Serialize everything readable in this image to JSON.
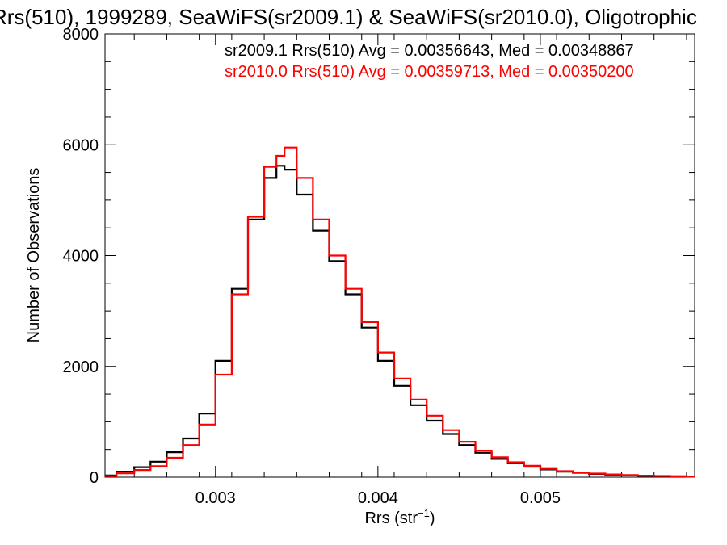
{
  "chart_data": {
    "type": "line",
    "title": "Rrs(510), 1999289, SeaWiFS(sr2009.1) & SeaWiFS(sr2010.0), Oligotrophic",
    "xlabel": "Rrs (str",
    "xlabel_superscript": "−1",
    "xlabel_suffix": ")",
    "ylabel": "Number of Observations",
    "xlim": [
      0.00232,
      0.00595
    ],
    "ylim": [
      0,
      8000
    ],
    "x_ticks": [
      {
        "value": 0.003,
        "label": "0.003"
      },
      {
        "value": 0.004,
        "label": "0.004"
      },
      {
        "value": 0.005,
        "label": "0.005"
      }
    ],
    "y_ticks": [
      {
        "value": 0,
        "label": "0"
      },
      {
        "value": 2000,
        "label": "2000"
      },
      {
        "value": 4000,
        "label": "4000"
      },
      {
        "value": 6000,
        "label": "6000"
      },
      {
        "value": 8000,
        "label": "8000"
      }
    ],
    "grid": false,
    "legend_position": "top-right",
    "series": [
      {
        "name": "sr2009.1",
        "color": "#000000",
        "label": "sr2009.1 Rrs(510) Avg = 0.00356643, Med = 0.00348867",
        "x": [
          0.00233,
          0.00245,
          0.00255,
          0.00265,
          0.00275,
          0.00285,
          0.00295,
          0.00305,
          0.00315,
          0.00325,
          0.00335,
          0.0034,
          0.00345,
          0.00355,
          0.00365,
          0.00375,
          0.00385,
          0.00395,
          0.00405,
          0.00415,
          0.00425,
          0.00435,
          0.00445,
          0.00455,
          0.00465,
          0.00475,
          0.00485,
          0.00495,
          0.00505,
          0.00515,
          0.00525,
          0.00535,
          0.00545,
          0.00555,
          0.00565,
          0.00575,
          0.00585,
          0.00594
        ],
        "y": [
          30,
          100,
          180,
          280,
          450,
          700,
          1150,
          2100,
          3400,
          4650,
          5400,
          5620,
          5550,
          5100,
          4450,
          3900,
          3300,
          2700,
          2100,
          1650,
          1300,
          1020,
          780,
          580,
          440,
          330,
          250,
          190,
          140,
          100,
          80,
          60,
          45,
          35,
          25,
          20,
          15,
          10
        ]
      },
      {
        "name": "sr2010.0",
        "color": "#ff0000",
        "label": "sr2010.0 Rrs(510) Avg = 0.00359713, Med = 0.00350200",
        "x": [
          0.00233,
          0.00245,
          0.00255,
          0.00265,
          0.00275,
          0.00285,
          0.00295,
          0.00305,
          0.00315,
          0.00325,
          0.00335,
          0.0034,
          0.00345,
          0.00355,
          0.00365,
          0.00375,
          0.00385,
          0.00395,
          0.00405,
          0.00415,
          0.00425,
          0.00435,
          0.00445,
          0.00455,
          0.00465,
          0.00475,
          0.00485,
          0.00495,
          0.00505,
          0.00515,
          0.00525,
          0.00535,
          0.00545,
          0.00555,
          0.00565,
          0.00575,
          0.00585,
          0.00594
        ],
        "y": [
          20,
          70,
          130,
          200,
          350,
          580,
          950,
          1850,
          3300,
          4700,
          5600,
          5800,
          5950,
          5400,
          4650,
          4000,
          3400,
          2800,
          2250,
          1780,
          1400,
          1110,
          850,
          640,
          480,
          360,
          270,
          205,
          150,
          110,
          85,
          65,
          50,
          38,
          28,
          22,
          16,
          10
        ]
      }
    ]
  }
}
